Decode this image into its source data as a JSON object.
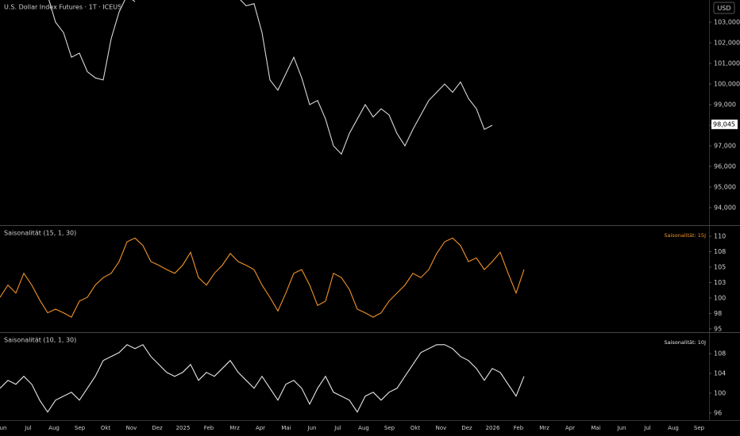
{
  "x_axis": {
    "labels": [
      "Jun",
      "Jul",
      "Aug",
      "Sep",
      "Okt",
      "Nov",
      "Dez",
      "2025",
      "Feb",
      "Mrz",
      "Apr",
      "Mai",
      "Jun",
      "Jul",
      "Aug",
      "Sep",
      "Okt",
      "Nov",
      "Dez",
      "2026",
      "Feb",
      "Mrz",
      "Apr",
      "Mai",
      "Jun",
      "Jul",
      "Aug",
      "Sep"
    ]
  },
  "chart_data": [
    {
      "type": "line",
      "title": "U.S. Dollar Index Futures · 1T · ICEUS",
      "currency": "USD",
      "last_price": {
        "value": 98.045,
        "label": "98,045"
      },
      "series": [
        {
          "color": "#d8d8d8",
          "values": [
            null,
            null,
            null,
            null,
            null,
            null,
            104.3,
            103.0,
            102.5,
            101.3,
            101.5,
            100.6,
            100.3,
            100.2,
            102.2,
            103.5,
            104.3,
            104.0,
            null,
            null,
            null,
            null,
            null,
            null,
            null,
            null,
            null,
            null,
            null,
            null,
            104.2,
            103.8,
            103.9,
            102.5,
            100.2,
            99.7,
            100.5,
            101.3,
            100.3,
            99.0,
            99.2,
            98.3,
            97.0,
            96.6,
            97.6,
            98.3,
            99.0,
            98.4,
            98.8,
            98.5,
            97.6,
            97.0,
            97.8,
            98.5,
            99.2,
            99.6,
            100.0,
            99.6,
            100.1,
            99.3,
            98.8,
            97.8,
            98.0,
            null,
            null,
            null,
            null
          ]
        }
      ],
      "ylim": [
        93.19,
        104.08
      ],
      "yticks": [
        {
          "value": 94,
          "label": "94,000"
        },
        {
          "value": 95,
          "label": "95,000"
        },
        {
          "value": 96,
          "label": "96,000"
        },
        {
          "value": 97,
          "label": "97,000"
        },
        {
          "value": 98,
          "label": "98,000"
        },
        {
          "value": 99,
          "label": "99,000"
        },
        {
          "value": 100,
          "label": "100,000"
        },
        {
          "value": 101,
          "label": "101,000"
        },
        {
          "value": 102,
          "label": "102,000"
        },
        {
          "value": 103,
          "label": "103,000"
        }
      ]
    },
    {
      "type": "line",
      "title": "Saisonalität (15, 1, 30)",
      "series": [
        {
          "name": "Saisonalität: 15J",
          "color": "#f0932b",
          "values": [
            100.1,
            102.1,
            100.8,
            104.0,
            102.1,
            99.7,
            97.6,
            98.2,
            97.6,
            96.9,
            99.5,
            100.1,
            102.1,
            103.3,
            104.0,
            105.9,
            109.1,
            109.7,
            108.5,
            105.9,
            105.3,
            104.6,
            104.0,
            105.3,
            107.4,
            103.3,
            102.1,
            104.0,
            105.3,
            107.2,
            105.9,
            105.3,
            104.6,
            102.1,
            100.1,
            97.9,
            100.8,
            104.0,
            104.6,
            102.1,
            98.8,
            99.5,
            104.0,
            103.3,
            101.4,
            98.2,
            97.6,
            96.9,
            97.6,
            99.5,
            100.8,
            102.1,
            104.0,
            103.3,
            104.6,
            107.2,
            109.1,
            109.7,
            108.5,
            105.9,
            106.5,
            104.6,
            105.9,
            107.4,
            104.0,
            100.8,
            104.6
          ]
        }
      ],
      "ylim": [
        94.6,
        111.67
      ],
      "yticks": [
        95,
        {
          "value": 97.5,
          "label": "98"
        },
        100,
        {
          "value": 102.5,
          "label": "103"
        },
        105,
        {
          "value": 107.5,
          "label": "108"
        },
        110
      ]
    },
    {
      "type": "line",
      "title": "Saisonalität (10, 1, 30)",
      "series": [
        {
          "name": "Saisonalität: 10J",
          "color": "#e6e6e6",
          "values": [
            101.0,
            102.6,
            101.8,
            103.4,
            101.8,
            98.6,
            96.2,
            98.6,
            99.4,
            100.2,
            98.6,
            101.0,
            103.4,
            106.6,
            107.4,
            108.2,
            109.8,
            109.0,
            109.8,
            107.4,
            105.8,
            104.2,
            103.4,
            104.2,
            105.8,
            102.6,
            104.2,
            103.4,
            105.0,
            106.6,
            104.2,
            102.6,
            101.0,
            103.4,
            101.0,
            98.6,
            101.8,
            102.6,
            101.0,
            97.8,
            101.0,
            103.4,
            100.2,
            99.4,
            98.6,
            96.2,
            99.4,
            100.2,
            98.6,
            100.2,
            101.0,
            103.4,
            105.8,
            108.2,
            109.0,
            109.8,
            109.8,
            109.0,
            107.4,
            106.6,
            105.0,
            102.6,
            105.0,
            104.2,
            101.8,
            99.4,
            103.4
          ]
        }
      ],
      "ylim": [
        94.56,
        112.16
      ],
      "yticks": [
        96,
        100,
        104,
        108
      ]
    }
  ]
}
